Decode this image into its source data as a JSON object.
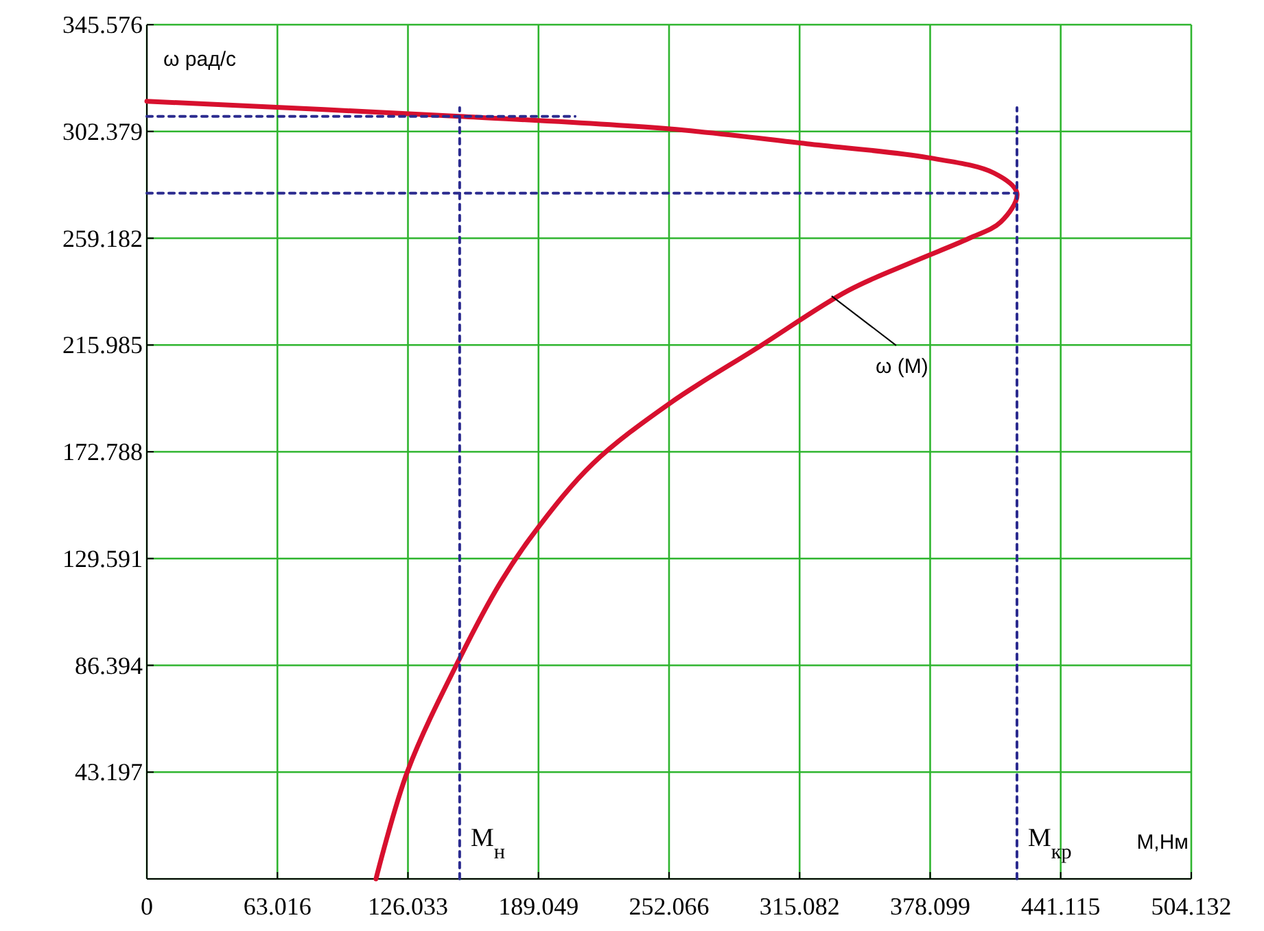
{
  "chart_data": {
    "type": "line",
    "xlabel": "М,Нм",
    "ylabel": "ω рад/с",
    "xlim": [
      0,
      504.132
    ],
    "xticks": [
      0,
      63.016,
      126.033,
      189.049,
      252.066,
      315.082,
      378.099,
      441.115,
      504.132
    ],
    "ylim": [
      0,
      345.576
    ],
    "yticks": [
      {
        "value": 0,
        "label": null
      },
      43.197,
      86.394,
      129.591,
      172.788,
      215.985,
      259.182,
      302.379,
      345.576
    ],
    "grid": true,
    "marker": "none",
    "series": [
      {
        "name": "ω (M)",
        "color": "#d7102e",
        "line_style": "solid",
        "x": [
          0,
          151,
          252.4,
          318.6,
          377,
          408.8,
          420,
          412.1,
          396.8,
          369.7,
          338.5,
          295.4,
          252.4,
          215.3,
          188.1,
          170.9,
          151,
          125.9,
          110.6
        ],
        "values": [
          314.6,
          308.5,
          303.4,
          297.4,
          291.8,
          285.6,
          277.4,
          265.7,
          259.1,
          249.6,
          238.0,
          215.2,
          192.4,
          168,
          141.3,
          120.2,
          89.2,
          43.7,
          0
        ]
      },
      {
        "color": "#2b2b8f",
        "line_style": "dashed",
        "x": [
          0,
          206.7
        ],
        "values": [
          308.5,
          308.5
        ]
      },
      {
        "color": "#2b2b8f",
        "line_style": "dashed",
        "x": [
          0,
          420
        ],
        "values": [
          277.4,
          277.4
        ]
      },
      {
        "color": "#2b2b8f",
        "line_style": "dashed",
        "x": [
          151,
          151
        ],
        "values": [
          0,
          312
        ]
      },
      {
        "color": "#2b2b8f",
        "line_style": "dashed",
        "x": [
          420,
          420
        ],
        "values": [
          0,
          312
        ]
      }
    ],
    "annotations": [
      {
        "text": "M$_{н}$",
        "x": 151,
        "y": 0
      },
      {
        "text": "M$_{кр}$",
        "x": 420,
        "y": 0
      }
    ]
  }
}
